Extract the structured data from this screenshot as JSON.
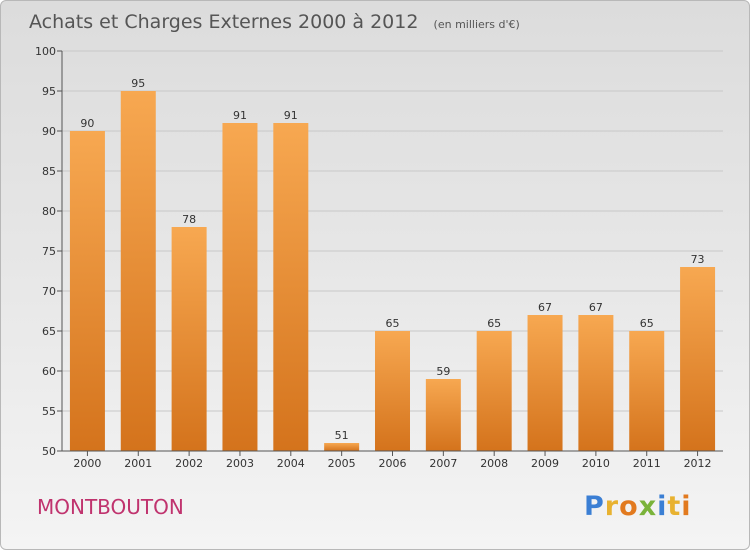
{
  "commune": "MONTBOUTON",
  "logo": {
    "letters": [
      "P",
      "r",
      "o",
      "x",
      "i",
      "t",
      "i"
    ],
    "colors": [
      "#3b7fd4",
      "#e8b230",
      "#e27a1f",
      "#7ab33a",
      "#3b7fd4",
      "#e8b230",
      "#e27a1f"
    ]
  },
  "colors": {
    "bar_top": "#f7a851",
    "bar_bottom": "#d4731c",
    "axis": "#555555",
    "grid": "#c8c8c8"
  },
  "chart_data": {
    "type": "bar",
    "title": "Achats et Charges Externes 2000 à 2012",
    "subtitle": "(en milliers d'€)",
    "categories": [
      "2000",
      "2001",
      "2002",
      "2003",
      "2004",
      "2005",
      "2006",
      "2007",
      "2008",
      "2009",
      "2010",
      "2011",
      "2012"
    ],
    "values": [
      90,
      95,
      78,
      91,
      91,
      51,
      65,
      59,
      65,
      67,
      67,
      65,
      73
    ],
    "ylim": [
      50,
      100
    ],
    "yticks": [
      50,
      55,
      60,
      65,
      70,
      75,
      80,
      85,
      90,
      95,
      100
    ],
    "grid": true,
    "data_labels": true
  }
}
